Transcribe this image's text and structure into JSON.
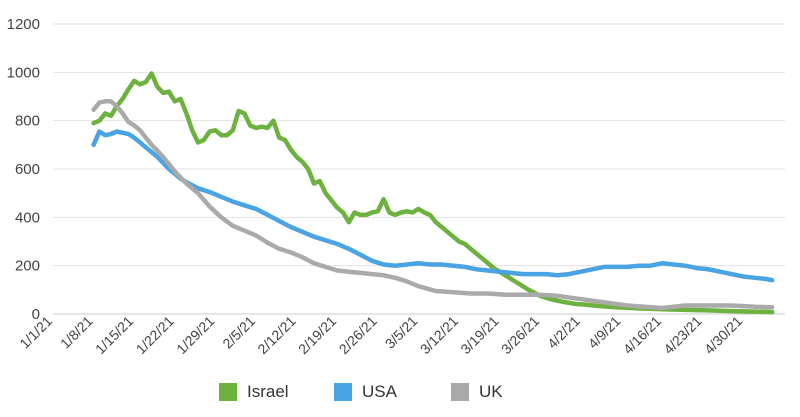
{
  "chart_data": {
    "type": "line",
    "title": "",
    "xlabel": "",
    "ylabel": "",
    "ylim": [
      0,
      1200
    ],
    "yticks": [
      0,
      200,
      400,
      600,
      800,
      1000,
      1200
    ],
    "xlim": [
      "2021-01-01",
      "2021-05-07"
    ],
    "xticks": [
      "1/1/21",
      "1/8/21",
      "1/15/21",
      "1/22/21",
      "1/29/21",
      "2/5/21",
      "2/12/21",
      "2/19/21",
      "2/26/21",
      "3/5/21",
      "3/12/21",
      "3/19/21",
      "3/26/21",
      "4/2/21",
      "4/9/21",
      "4/16/21",
      "4/23/21",
      "4/30/21"
    ],
    "grid": true,
    "legend_position": "bottom",
    "series": [
      {
        "name": "Israel",
        "color": "#6db23f",
        "x": [
          "2021-01-08",
          "2021-01-09",
          "2021-01-10",
          "2021-01-11",
          "2021-01-12",
          "2021-01-13",
          "2021-01-14",
          "2021-01-15",
          "2021-01-16",
          "2021-01-17",
          "2021-01-18",
          "2021-01-19",
          "2021-01-20",
          "2021-01-21",
          "2021-01-22",
          "2021-01-23",
          "2021-01-24",
          "2021-01-25",
          "2021-01-26",
          "2021-01-27",
          "2021-01-28",
          "2021-01-29",
          "2021-01-30",
          "2021-01-31",
          "2021-02-01",
          "2021-02-02",
          "2021-02-03",
          "2021-02-04",
          "2021-02-05",
          "2021-02-06",
          "2021-02-07",
          "2021-02-08",
          "2021-02-09",
          "2021-02-10",
          "2021-02-11",
          "2021-02-12",
          "2021-02-13",
          "2021-02-14",
          "2021-02-15",
          "2021-02-16",
          "2021-02-17",
          "2021-02-18",
          "2021-02-19",
          "2021-02-20",
          "2021-02-21",
          "2021-02-22",
          "2021-02-23",
          "2021-02-24",
          "2021-02-25",
          "2021-02-26",
          "2021-02-27",
          "2021-02-28",
          "2021-03-01",
          "2021-03-02",
          "2021-03-03",
          "2021-03-04",
          "2021-03-05",
          "2021-03-06",
          "2021-03-07",
          "2021-03-08",
          "2021-03-09",
          "2021-03-10",
          "2021-03-11",
          "2021-03-12",
          "2021-03-13",
          "2021-03-14",
          "2021-03-16",
          "2021-03-18",
          "2021-03-20",
          "2021-03-22",
          "2021-03-24",
          "2021-03-26",
          "2021-03-28",
          "2021-03-30",
          "2021-04-01",
          "2021-04-03",
          "2021-04-05",
          "2021-04-08",
          "2021-04-12",
          "2021-04-16",
          "2021-04-20",
          "2021-04-24",
          "2021-04-28",
          "2021-05-02",
          "2021-05-05"
        ],
        "values": [
          790,
          800,
          830,
          820,
          860,
          890,
          930,
          965,
          950,
          960,
          995,
          940,
          915,
          920,
          880,
          890,
          830,
          760,
          710,
          720,
          755,
          760,
          740,
          740,
          760,
          840,
          830,
          780,
          770,
          775,
          770,
          800,
          730,
          720,
          680,
          650,
          630,
          600,
          540,
          550,
          500,
          470,
          440,
          420,
          380,
          420,
          410,
          410,
          420,
          425,
          475,
          420,
          410,
          420,
          425,
          420,
          435,
          420,
          410,
          380,
          360,
          340,
          320,
          300,
          290,
          270,
          230,
          190,
          160,
          130,
          100,
          75,
          60,
          50,
          42,
          38,
          33,
          28,
          23,
          20,
          17,
          15,
          12,
          10,
          8
        ]
      },
      {
        "name": "USA",
        "color": "#4aa3e2",
        "x": [
          "2021-01-08",
          "2021-01-09",
          "2021-01-10",
          "2021-01-11",
          "2021-01-12",
          "2021-01-13",
          "2021-01-14",
          "2021-01-15",
          "2021-01-16",
          "2021-01-17",
          "2021-01-18",
          "2021-01-19",
          "2021-01-20",
          "2021-01-21",
          "2021-01-22",
          "2021-01-23",
          "2021-01-24",
          "2021-01-26",
          "2021-01-28",
          "2021-01-30",
          "2021-02-01",
          "2021-02-03",
          "2021-02-05",
          "2021-02-07",
          "2021-02-09",
          "2021-02-11",
          "2021-02-13",
          "2021-02-15",
          "2021-02-17",
          "2021-02-19",
          "2021-02-21",
          "2021-02-23",
          "2021-02-25",
          "2021-02-27",
          "2021-03-01",
          "2021-03-03",
          "2021-03-05",
          "2021-03-07",
          "2021-03-09",
          "2021-03-11",
          "2021-03-13",
          "2021-03-15",
          "2021-03-17",
          "2021-03-19",
          "2021-03-21",
          "2021-03-23",
          "2021-03-25",
          "2021-03-27",
          "2021-03-29",
          "2021-03-31",
          "2021-04-02",
          "2021-04-04",
          "2021-04-06",
          "2021-04-08",
          "2021-04-10",
          "2021-04-12",
          "2021-04-14",
          "2021-04-16",
          "2021-04-18",
          "2021-04-20",
          "2021-04-22",
          "2021-04-24",
          "2021-04-26",
          "2021-04-28",
          "2021-04-30",
          "2021-05-02",
          "2021-05-04",
          "2021-05-05"
        ],
        "values": [
          700,
          755,
          740,
          745,
          755,
          750,
          745,
          730,
          710,
          690,
          670,
          650,
          625,
          600,
          580,
          560,
          545,
          520,
          505,
          485,
          465,
          450,
          435,
          410,
          385,
          360,
          340,
          320,
          305,
          290,
          270,
          245,
          220,
          205,
          200,
          205,
          210,
          205,
          205,
          200,
          195,
          185,
          180,
          175,
          170,
          165,
          165,
          165,
          160,
          165,
          175,
          185,
          195,
          195,
          195,
          200,
          200,
          210,
          205,
          200,
          190,
          185,
          175,
          165,
          155,
          150,
          145,
          140
        ]
      },
      {
        "name": "UK",
        "color": "#aaaaaa",
        "x": [
          "2021-01-08",
          "2021-01-09",
          "2021-01-10",
          "2021-01-11",
          "2021-01-12",
          "2021-01-13",
          "2021-01-14",
          "2021-01-15",
          "2021-01-16",
          "2021-01-17",
          "2021-01-18",
          "2021-01-20",
          "2021-01-22",
          "2021-01-24",
          "2021-01-26",
          "2021-01-28",
          "2021-01-30",
          "2021-02-01",
          "2021-02-03",
          "2021-02-05",
          "2021-02-07",
          "2021-02-09",
          "2021-02-11",
          "2021-02-13",
          "2021-02-15",
          "2021-02-17",
          "2021-02-19",
          "2021-02-21",
          "2021-02-23",
          "2021-02-25",
          "2021-02-27",
          "2021-03-01",
          "2021-03-03",
          "2021-03-05",
          "2021-03-08",
          "2021-03-11",
          "2021-03-14",
          "2021-03-17",
          "2021-03-20",
          "2021-03-23",
          "2021-03-26",
          "2021-03-29",
          "2021-04-01",
          "2021-04-04",
          "2021-04-07",
          "2021-04-10",
          "2021-04-13",
          "2021-04-16",
          "2021-04-20",
          "2021-04-24",
          "2021-04-28",
          "2021-05-02",
          "2021-05-05"
        ],
        "values": [
          845,
          875,
          880,
          880,
          860,
          830,
          795,
          780,
          760,
          730,
          700,
          650,
          590,
          540,
          500,
          445,
          400,
          365,
          345,
          325,
          295,
          270,
          255,
          235,
          210,
          195,
          180,
          175,
          170,
          165,
          160,
          150,
          135,
          115,
          95,
          90,
          85,
          85,
          80,
          80,
          80,
          75,
          65,
          55,
          45,
          35,
          30,
          25,
          35,
          35,
          35,
          30,
          28
        ]
      }
    ]
  }
}
